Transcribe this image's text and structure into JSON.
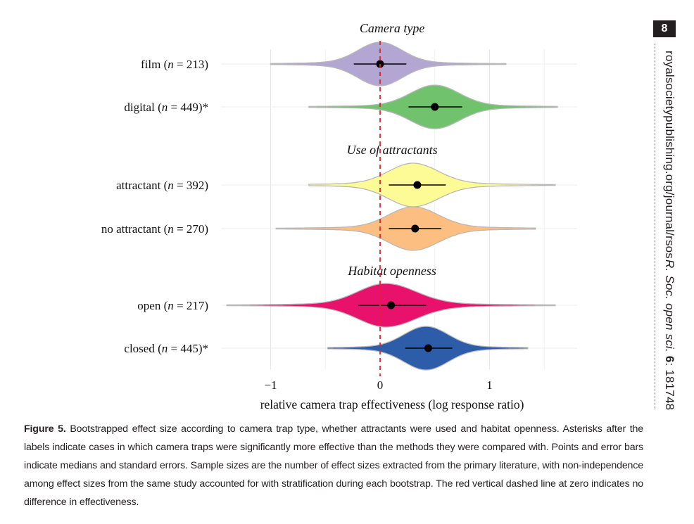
{
  "page_number": "8",
  "running_head": {
    "site": "royalsocietypublishing.org/journal/rsos",
    "journal": "R. Soc. open sci.",
    "volume": "6",
    "article": ": 18174​8"
  },
  "caption": {
    "label": "Figure 5.",
    "text": "Bootstrapped effect size according to camera trap type, whether attractants were used and habitat openness. Asterisks after the labels indicate cases in which camera traps were significantly more effective than the methods they were compared with. Points and error bars indicate medians and standard errors. Sample sizes are the number of effect sizes extracted from the primary literature, with non-independence among effect sizes from the same study accounted for with stratification during each bootstrap. The red vertical dashed line at zero indicates no difference in effectiveness."
  },
  "chart_data": {
    "type": "violin",
    "xlabel": "relative camera trap effectiveness (log response ratio)",
    "x_ticks": [
      -1,
      0,
      1
    ],
    "x_tick_labels": [
      "−1",
      "0",
      "1"
    ],
    "xlim": [
      -1.45,
      1.8
    ],
    "reference_line": 0,
    "grid": true,
    "panels": [
      {
        "title": "Camera type",
        "groups": [
          {
            "label": "film",
            "n": "213",
            "asterisk": "",
            "color": "#b3a6d3",
            "median": 0.0,
            "se_low": -0.24,
            "se_high": 0.24,
            "min": -1.0,
            "max": 1.15,
            "peak": 0.0,
            "spread": 0.2,
            "skew": 1.0
          },
          {
            "label": "digital",
            "n": "449",
            "asterisk": "*",
            "color": "#71c26c",
            "median": 0.5,
            "se_low": 0.26,
            "se_high": 0.75,
            "min": -0.65,
            "max": 1.62,
            "peak": 0.5,
            "spread": 0.22,
            "skew": 1.0
          }
        ]
      },
      {
        "title": "Use of attractants",
        "groups": [
          {
            "label": "attractant",
            "n": "392",
            "asterisk": "",
            "color": "#fdfb96",
            "median": 0.34,
            "se_low": 0.08,
            "se_high": 0.6,
            "min": -0.65,
            "max": 1.6,
            "peak": 0.3,
            "spread": 0.22,
            "skew": 1.05
          },
          {
            "label": "no attractant",
            "n": "270",
            "asterisk": "",
            "color": "#fdbf81",
            "median": 0.32,
            "se_low": 0.08,
            "se_high": 0.56,
            "min": -0.95,
            "max": 1.42,
            "peak": 0.3,
            "spread": 0.22,
            "skew": 1.05
          }
        ]
      },
      {
        "title": "Habitat openness",
        "groups": [
          {
            "label": "open",
            "n": "217",
            "asterisk": "",
            "color": "#e8116b",
            "median": 0.1,
            "se_low": -0.2,
            "se_high": 0.42,
            "min": -1.4,
            "max": 1.6,
            "peak": 0.05,
            "spread": 0.25,
            "skew": 1.1
          },
          {
            "label": "closed",
            "n": "445",
            "asterisk": "*",
            "color": "#2d5ca8",
            "median": 0.44,
            "se_low": 0.23,
            "se_high": 0.66,
            "min": -0.48,
            "max": 1.35,
            "peak": 0.42,
            "spread": 0.2,
            "skew": 1.0
          }
        ]
      }
    ]
  }
}
